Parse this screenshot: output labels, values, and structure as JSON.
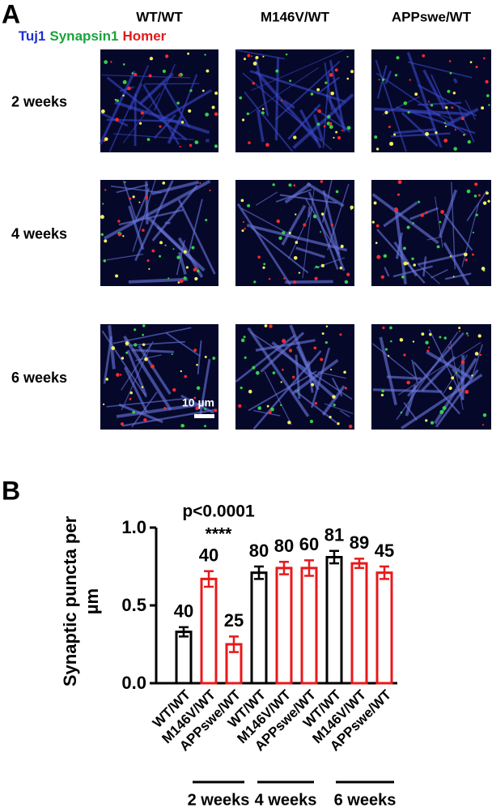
{
  "panel_a": {
    "label": "A",
    "columns": [
      "WT/WT",
      "M146V/WT",
      "APPswe/WT"
    ],
    "stain_legend": [
      {
        "name": "Tuj1",
        "color": "#1f2fd0"
      },
      {
        "name": "Synapsin1",
        "color": "#1aa33a"
      },
      {
        "name": "Homer",
        "color": "#e01b1b"
      }
    ],
    "rows": [
      "2 weeks",
      "4 weeks",
      "6 weeks"
    ],
    "scale_bar": "10 µm"
  },
  "chart_data": {
    "type": "bar",
    "panel_label": "B",
    "ylabel": "Synaptic puncta per µm",
    "categories": [
      "WT/WT",
      "M146V/WT",
      "APPswe/WT",
      "WT/WT",
      "M146V/WT",
      "APPswe/WT",
      "WT/WT",
      "M146V/WT",
      "APPswe/WT"
    ],
    "values": [
      0.33,
      0.67,
      0.25,
      0.71,
      0.74,
      0.74,
      0.81,
      0.77,
      0.71
    ],
    "errors": [
      0.03,
      0.05,
      0.05,
      0.04,
      0.04,
      0.05,
      0.04,
      0.03,
      0.04
    ],
    "n": [
      "40",
      "40",
      "25",
      "80",
      "80",
      "60",
      "81",
      "89",
      "45"
    ],
    "colors": [
      "#000000",
      "#e8191b",
      "#e8191b",
      "#000000",
      "#e8191b",
      "#e8191b",
      "#000000",
      "#e8191b",
      "#e8191b"
    ],
    "ylim": [
      0,
      1.0
    ],
    "yticks": [
      {
        "value": 0,
        "label": "0.0"
      },
      {
        "value": 0.5,
        "label": "0.5"
      },
      {
        "value": 1.0,
        "label": "1.0"
      }
    ],
    "annotations": [
      {
        "text": "p<0.0001",
        "bar": 1
      },
      {
        "text": "****",
        "bar": 1
      }
    ],
    "groups": [
      "2 weeks",
      "4 weeks",
      "6 weeks"
    ]
  }
}
